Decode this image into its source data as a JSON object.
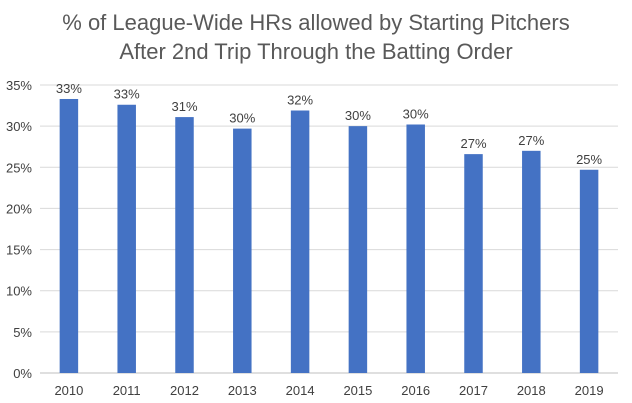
{
  "chart_data": {
    "type": "bar",
    "title_lines": [
      "% of League-Wide HRs allowed by Starting Pitchers",
      "After 2nd Trip Through the Batting Order"
    ],
    "categories": [
      "2010",
      "2011",
      "2012",
      "2013",
      "2014",
      "2015",
      "2016",
      "2017",
      "2018",
      "2019"
    ],
    "values": [
      33.3,
      32.6,
      31.1,
      29.7,
      31.9,
      30.0,
      30.2,
      26.6,
      27.0,
      24.7
    ],
    "data_labels": [
      "33%",
      "33%",
      "31%",
      "30%",
      "32%",
      "30%",
      "30%",
      "27%",
      "27%",
      "25%"
    ],
    "ylim": [
      0,
      35
    ],
    "y_ticks": [
      0,
      5,
      10,
      15,
      20,
      25,
      30,
      35
    ],
    "y_tick_labels": [
      "0%",
      "5%",
      "10%",
      "15%",
      "20%",
      "25%",
      "30%",
      "35%"
    ],
    "xlabel": "",
    "ylabel": "",
    "grid": true,
    "legend": "none",
    "colors": {
      "bar": "#4472C4",
      "grid": "#D9D9D9",
      "axis": "#BFBFBF",
      "text": "#404040",
      "title": "#595959"
    }
  }
}
